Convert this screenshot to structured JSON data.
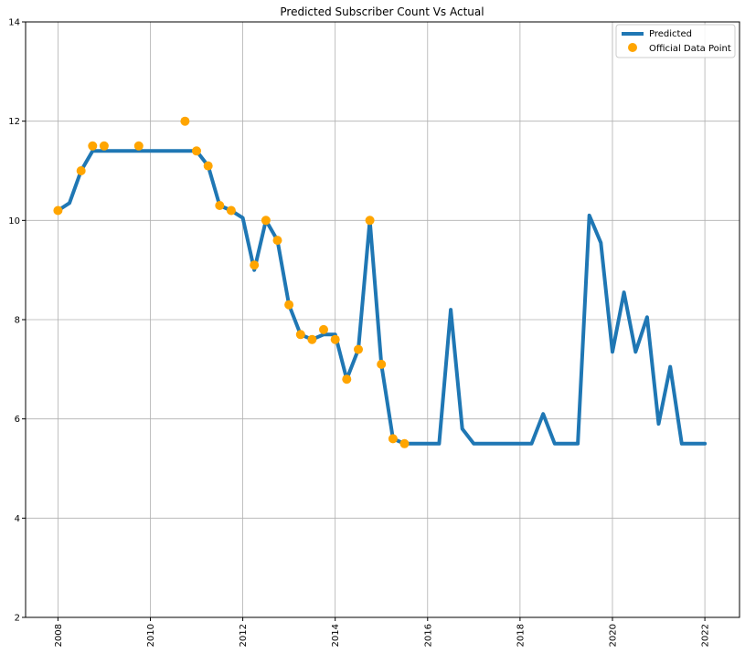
{
  "chart_data": {
    "type": "line",
    "title": "Predicted Subscriber Count Vs Actual",
    "xlabel": "",
    "ylabel": "",
    "xlim": [
      2007.3,
      2022.75
    ],
    "ylim": [
      2,
      14
    ],
    "x_ticks": [
      2008,
      2010,
      2012,
      2014,
      2016,
      2018,
      2020,
      2022
    ],
    "y_ticks": [
      2,
      4,
      6,
      8,
      10,
      12,
      14
    ],
    "grid": true,
    "legend_position": "top-right",
    "colors": {
      "predicted": "#1f77b4",
      "official": "#ffa500",
      "grid": "#b0b0b0"
    },
    "series": [
      {
        "name": "Predicted",
        "style": "line",
        "x": [
          2008.0,
          2008.25,
          2008.5,
          2008.75,
          2009.0,
          2009.25,
          2009.5,
          2009.75,
          2010.0,
          2010.25,
          2010.5,
          2010.75,
          2011.0,
          2011.25,
          2011.5,
          2011.75,
          2012.0,
          2012.25,
          2012.5,
          2012.75,
          2013.0,
          2013.25,
          2013.5,
          2013.75,
          2014.0,
          2014.25,
          2014.5,
          2014.75,
          2015.0,
          2015.25,
          2015.5,
          2015.75,
          2016.0,
          2016.25,
          2016.5,
          2016.75,
          2017.0,
          2017.25,
          2017.5,
          2017.75,
          2018.0,
          2018.25,
          2018.5,
          2018.75,
          2019.0,
          2019.25,
          2019.5,
          2019.75,
          2020.0,
          2020.25,
          2020.5,
          2020.75,
          2021.0,
          2021.25,
          2021.5,
          2021.75,
          2022.0
        ],
        "y": [
          10.2,
          10.35,
          11.0,
          11.4,
          11.4,
          11.4,
          11.4,
          11.4,
          11.4,
          11.4,
          11.4,
          11.4,
          11.4,
          11.1,
          10.3,
          10.2,
          10.05,
          9.0,
          10.0,
          9.6,
          8.3,
          7.7,
          7.6,
          7.7,
          7.7,
          6.8,
          7.4,
          10.0,
          7.1,
          5.6,
          5.5,
          5.5,
          5.5,
          5.5,
          8.2,
          5.8,
          5.5,
          5.5,
          5.5,
          5.5,
          5.5,
          5.5,
          6.1,
          5.5,
          5.5,
          5.5,
          10.1,
          9.55,
          7.35,
          8.55,
          7.35,
          8.05,
          5.9,
          7.05,
          5.5,
          5.5,
          5.5
        ]
      },
      {
        "name": "Official Data Point",
        "style": "scatter",
        "x": [
          2008.0,
          2008.5,
          2008.75,
          2009.0,
          2009.75,
          2010.75,
          2011.0,
          2011.25,
          2011.5,
          2011.75,
          2012.25,
          2012.5,
          2012.75,
          2013.0,
          2013.25,
          2013.5,
          2013.75,
          2014.0,
          2014.25,
          2014.5,
          2014.75,
          2015.0,
          2015.25,
          2015.5
        ],
        "y": [
          10.2,
          11.0,
          11.5,
          11.5,
          11.5,
          12.0,
          11.4,
          11.1,
          10.3,
          10.2,
          9.1,
          10.0,
          9.6,
          8.3,
          7.7,
          7.6,
          7.8,
          7.6,
          6.8,
          7.4,
          10.0,
          7.1,
          5.6,
          5.5
        ]
      }
    ]
  }
}
